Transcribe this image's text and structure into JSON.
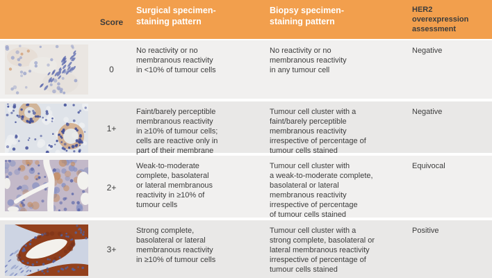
{
  "colors": {
    "header_bg": "#F29F4D",
    "header_text": "#FFFFFF",
    "row_bg": "#F1F0EF",
    "row_alt_bg": "#E9E8E7",
    "body_text": "#3C3C3C",
    "separator": "#FFFFFF"
  },
  "table": {
    "headers": {
      "image": "",
      "score": "Score",
      "surgical": "Surgical specimen-\nstaining pattern",
      "biopsy": "Biopsy specimen-\nstaining pattern",
      "her2": "HER2\noverexpression\nassessment"
    },
    "rows": [
      {
        "score": "0",
        "image_alt": "Micrograph: no membranous staining (score 0)",
        "surgical": "No reactivity or no\nmembranous reactivity\nin <10% of tumour cells",
        "biopsy": "No reactivity or no\nmembranous reactivity\nin any tumour cell",
        "assessment": "Negative"
      },
      {
        "score": "1+",
        "image_alt": "Micrograph: faint/barely perceptible membranous staining (score 1+)",
        "surgical": "Faint/barely perceptible\nmembranous reactivity\nin ≥10% of tumour cells;\ncells are reactive only in\npart of their membrane",
        "biopsy": "Tumour cell cluster with a\nfaint/barely perceptible\nmembranous reactivity\nirrespective of percentage of\ntumour cells stained",
        "assessment": "Negative"
      },
      {
        "score": "2+",
        "image_alt": "Micrograph: weak-to-moderate membranous staining (score 2+)",
        "surgical": "Weak-to-moderate\ncomplete, basolateral\nor lateral membranous\nreactivity in ≥10% of\ntumour cells",
        "biopsy": "Tumour cell cluster with\na weak-to-moderate complete,\nbasolateral or lateral\nmembranous reactivity\nirrespective of percentage\nof tumour cells stained",
        "assessment": "Equivocal"
      },
      {
        "score": "3+",
        "image_alt": "Micrograph: strong complete membranous staining (score 3+)",
        "surgical": "Strong complete,\nbasolateral or lateral\nmembranous reactivity\nin ≥10% of tumour cells",
        "biopsy": "Tumour cell cluster with a\nstrong complete, basolateral or\nlateral membranous reactivity\nirrespective of percentage of\ntumour cells stained",
        "assessment": "Positive"
      }
    ]
  }
}
